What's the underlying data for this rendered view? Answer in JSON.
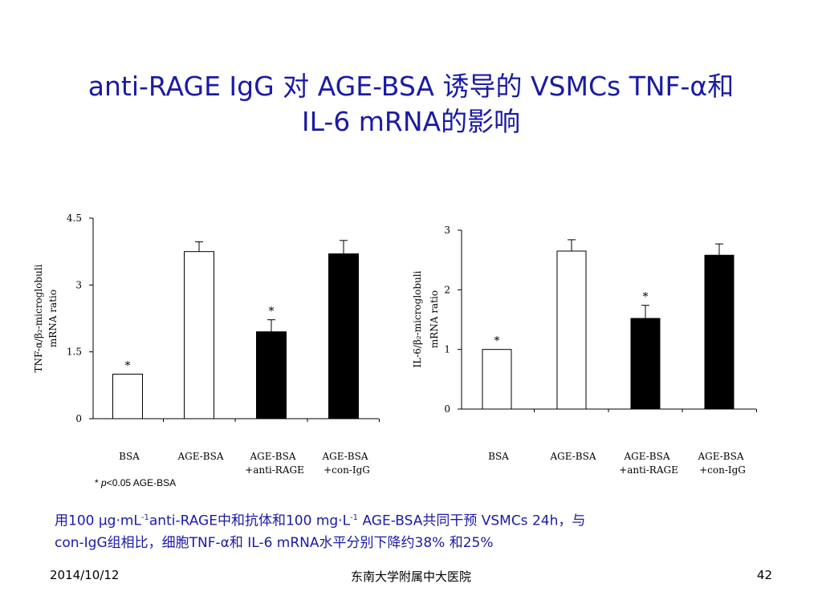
{
  "title": {
    "line1": "anti-RAGE IgG 对 AGE-BSA 诱导的 VSMCs TNF-α和",
    "line2": "IL-6 mRNA的影响"
  },
  "chart_data": [
    {
      "type": "bar",
      "ylabel_line1": "TNF-α/β₂-microglobuli",
      "ylabel_line2": "mRNA ratio",
      "ylim": [
        0,
        4.5
      ],
      "yticks": [
        "0",
        "1.5",
        "3",
        "4.5"
      ],
      "categories": [
        [
          "BSA",
          ""
        ],
        [
          "AGE-BSA",
          ""
        ],
        [
          "AGE-BSA",
          "+anti-RAGE"
        ],
        [
          "AGE-BSA",
          "+con-IgG"
        ]
      ],
      "values": [
        1.0,
        3.75,
        1.95,
        3.7
      ],
      "errors": [
        0.0,
        0.22,
        0.27,
        0.3
      ],
      "fills": [
        "#ffffff",
        "#ffffff",
        "#000000",
        "#000000"
      ],
      "annotations": [
        "*",
        "",
        "*",
        ""
      ]
    },
    {
      "type": "bar",
      "ylabel_line1": "IL-6/β₂-microglobuli",
      "ylabel_line2": "mRNA ratio",
      "ylim": [
        0,
        3
      ],
      "yticks": [
        "0",
        "1",
        "2",
        "3"
      ],
      "categories": [
        [
          "BSA",
          ""
        ],
        [
          "AGE-BSA",
          ""
        ],
        [
          "AGE-BSA",
          "+anti-RAGE"
        ],
        [
          "AGE-BSA",
          "+con-IgG"
        ]
      ],
      "values": [
        1.0,
        2.65,
        1.52,
        2.58
      ],
      "errors": [
        0.0,
        0.19,
        0.22,
        0.19
      ],
      "fills": [
        "#ffffff",
        "#ffffff",
        "#000000",
        "#000000"
      ],
      "annotations": [
        "*",
        "",
        "*",
        ""
      ]
    }
  ],
  "footnote": {
    "star": "* ",
    "p": "p",
    "rest": "<0.05 AGE-BSA"
  },
  "caption": {
    "l1a": "用100 µg·mL",
    "l1sup": "-1",
    "l1b": "anti-RAGE中和抗体和100 mg·L",
    "l1sup2": "-1",
    "l1c": " AGE-BSA共同干预 VSMCs 24h，与",
    "l2": "con-IgG组相比，细胞TNF-α和 IL-6 mRNA水平分别下降约38% 和25%"
  },
  "footer": {
    "date": "2014/10/12",
    "institution": "东南大学附属中大医院",
    "page": "42"
  }
}
